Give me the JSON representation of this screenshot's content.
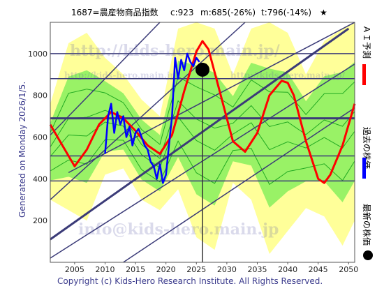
{
  "header": {
    "title": "1687=農産物商品指数",
    "current": "c:923",
    "m_value": "m:685(-26%)",
    "t_value": "t:796(-14%)",
    "star": "★"
  },
  "side_label": "Generated on Monday 2026/1/5.",
  "footer": "Copyright (c) Kids-Hero Research Institute. All Rights Reserved.",
  "watermarks": {
    "url": "http://kids-hero.main.jp/",
    "email": "info@kids-hero.main.jp"
  },
  "legend": {
    "ai": "ＡＩ予測",
    "past": "過去の株価",
    "latest": "最新の株価"
  },
  "colors": {
    "ai": "#ff0000",
    "past": "#0000ff",
    "latest": "#000000",
    "channel": "#3b3b78",
    "band_outer": "#ffff99",
    "band_inner": "#77ee55",
    "band_line": "#22aa22"
  },
  "chart_data": {
    "type": "line",
    "xlim": [
      2001,
      2051
    ],
    "ylim": [
      0,
      1150
    ],
    "x_ticks": [
      2005,
      2010,
      2015,
      2020,
      2025,
      2030,
      2035,
      2040,
      2045,
      2050
    ],
    "y_ticks": [
      200,
      400,
      600,
      800,
      1000
    ],
    "current_marker": {
      "x": 2026.0,
      "y": 923
    },
    "horizontal_lines": [
      1000,
      880,
      690,
      510,
      390
    ],
    "series": [
      {
        "key": "ai",
        "x": [
          2001,
          2003,
          2005,
          2007,
          2009,
          2011,
          2013,
          2015,
          2017,
          2019,
          2021,
          2023,
          2025,
          2026,
          2027,
          2029,
          2031,
          2033,
          2035,
          2037,
          2039,
          2040,
          2041,
          2043,
          2045,
          2046,
          2047,
          2049,
          2051
        ],
        "y": [
          660,
          560,
          460,
          540,
          660,
          720,
          690,
          630,
          560,
          520,
          610,
          820,
          1010,
          1060,
          1020,
          800,
          580,
          530,
          620,
          800,
          870,
          860,
          800,
          580,
          400,
          380,
          420,
          560,
          760
        ]
      },
      {
        "key": "past",
        "x": [
          2010,
          2010.5,
          2011,
          2011.5,
          2012,
          2012.5,
          2013,
          2013.5,
          2014,
          2014.5,
          2015,
          2015.5,
          2016,
          2016.5,
          2017,
          2017.5,
          2018,
          2018.5,
          2019,
          2019.5,
          2020,
          2020.5,
          2021,
          2021.5,
          2022,
          2022.5,
          2023,
          2023.5,
          2024,
          2024.5,
          2025,
          2025.5
        ],
        "y": [
          520,
          700,
          760,
          620,
          720,
          660,
          700,
          600,
          650,
          560,
          620,
          640,
          600,
          560,
          540,
          480,
          460,
          400,
          470,
          380,
          420,
          560,
          700,
          980,
          880,
          970,
          920,
          1000,
          960,
          940,
          980,
          960
        ]
      }
    ],
    "band_upper": {
      "x": [
        2001,
        2004,
        2007,
        2010,
        2013,
        2016,
        2019,
        2022,
        2025,
        2028,
        2031,
        2034,
        2037,
        2040,
        2043,
        2046,
        2049,
        2051
      ],
      "y": [
        760,
        1050,
        1100,
        980,
        900,
        780,
        700,
        1120,
        1150,
        1120,
        900,
        1120,
        1150,
        1100,
        900,
        1060,
        1120,
        1150
      ]
    },
    "band_lower": {
      "x": [
        2001,
        2004,
        2007,
        2010,
        2013,
        2016,
        2019,
        2022,
        2025,
        2028,
        2031,
        2034,
        2037,
        2040,
        2043,
        2046,
        2049,
        2051
      ],
      "y": [
        300,
        250,
        200,
        420,
        450,
        300,
        250,
        350,
        120,
        60,
        380,
        300,
        40,
        150,
        260,
        220,
        80,
        200
      ]
    },
    "channels": [
      {
        "x0": 2001,
        "y0": 110,
        "x1": 2050,
        "y1": 1120
      },
      {
        "x0": 2001,
        "y0": 300,
        "x1": 2033,
        "y1": 1150
      },
      {
        "x0": 2001,
        "y0": 610,
        "x1": 2019,
        "y1": 1150
      },
      {
        "x0": 2004,
        "y0": 430,
        "x1": 2051,
        "y1": 1150
      },
      {
        "x0": 2001,
        "y0": 20,
        "x1": 2051,
        "y1": 950
      },
      {
        "x0": 2013,
        "y0": 0,
        "x1": 2051,
        "y1": 740
      }
    ]
  }
}
